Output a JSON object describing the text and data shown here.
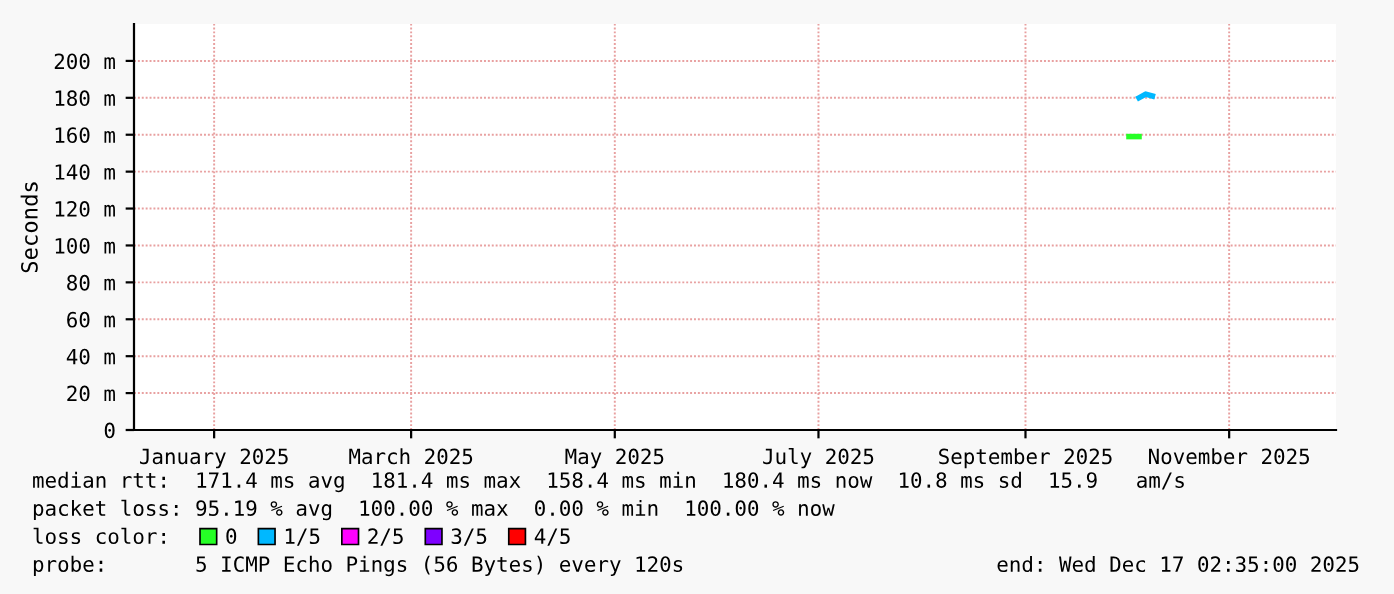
{
  "chart_data": {
    "type": "line",
    "ylabel": "Seconds",
    "legend_title": "loss color:",
    "xlim": [
      "2024-12-23",
      "2025-12-18"
    ],
    "xticks": [
      {
        "value": "2025-01-16",
        "label": "January 2025"
      },
      {
        "value": "2025-03-16",
        "label": "March 2025"
      },
      {
        "value": "2025-05-16",
        "label": "May 2025"
      },
      {
        "value": "2025-07-16",
        "label": "July 2025"
      },
      {
        "value": "2025-09-16",
        "label": "September 2025"
      },
      {
        "value": "2025-11-16",
        "label": "November 2025"
      }
    ],
    "ylim": [
      0,
      220
    ],
    "yticks": [
      0,
      {
        "value": 20,
        "label": "20 m"
      },
      {
        "value": 40,
        "label": "40 m"
      },
      {
        "value": 60,
        "label": "60 m"
      },
      {
        "value": 80,
        "label": "80 m"
      },
      {
        "value": 100,
        "label": "100 m"
      },
      {
        "value": 120,
        "label": "120 m"
      },
      {
        "value": 140,
        "label": "140 m"
      },
      {
        "value": 160,
        "label": "160 m"
      },
      {
        "value": 180,
        "label": "180 m"
      },
      {
        "value": 200,
        "label": "200 m"
      }
    ],
    "grid": true,
    "legend": "bottom",
    "series": [
      {
        "name": "0",
        "color": "#26ff26",
        "x": [
          "2025-10-17",
          "2025-10-20"
        ],
        "values": [
          159,
          159
        ]
      },
      {
        "name": "1/5",
        "color": "#00b8ff",
        "x": [
          "2025-10-20",
          "2025-10-22",
          "2025-10-24"
        ],
        "values": [
          180,
          182,
          181
        ]
      },
      {
        "name": "2/5",
        "color": "#ff00ff"
      },
      {
        "name": "3/5",
        "color": "#7e00ff"
      },
      {
        "name": "4/5",
        "color": "#ff0000"
      }
    ],
    "annotations": [
      "median rtt:  171.4 ms avg  181.4 ms max  158.4 ms min  180.4 ms now  10.8 ms sd  15.9   am/s",
      "packet loss: 95.19 % avg  100.00 % max  0.00 % min  100.00 % now",
      "probe:       5 ICMP Echo Pings (56 Bytes) every 120s",
      "end: Wed Dec 17 02:35:00 2025"
    ]
  }
}
